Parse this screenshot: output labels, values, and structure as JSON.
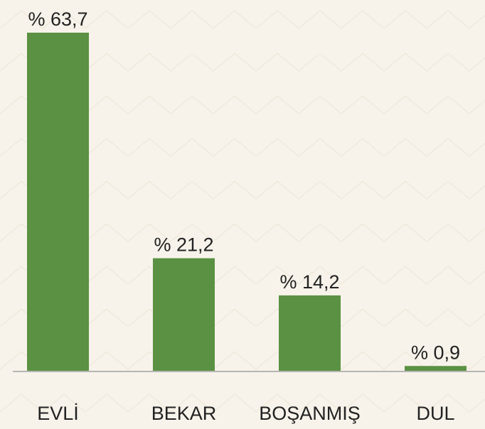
{
  "chart_data": {
    "type": "bar",
    "categories": [
      "EVLİ",
      "BEKAR",
      "BOŞANMIŞ",
      "DUL"
    ],
    "values": [
      63.7,
      21.2,
      14.2,
      0.9
    ],
    "value_labels": [
      "% 63,7",
      "% 21,2",
      "% 14,2",
      "% 0,9"
    ],
    "color": "#5a9142"
  }
}
